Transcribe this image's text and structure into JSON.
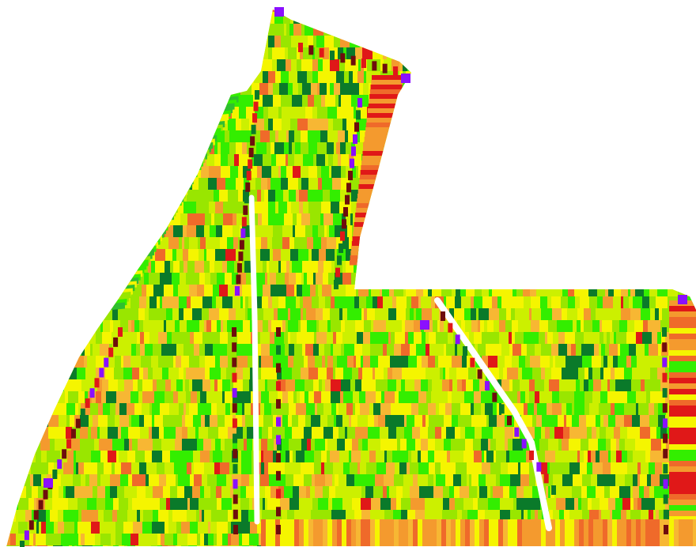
{
  "map": {
    "background": "#ffffff",
    "legend_visible": false,
    "palette": {
      "dark_green": "#0a7a2a",
      "medium_green": "#2fbf2f",
      "bright_green": "#33ee00",
      "lime": "#99e600",
      "yellow_green": "#ccf000",
      "yellow": "#f5f500",
      "orange_light": "#f7b733",
      "orange": "#f49a2e",
      "orange_red": "#ef6a2a",
      "red": "#e01818",
      "dark_red": "#6e0d0d",
      "purple": "#8a10ff",
      "blue_accent": "#4b2bd6",
      "road": "#ffffff"
    }
  }
}
